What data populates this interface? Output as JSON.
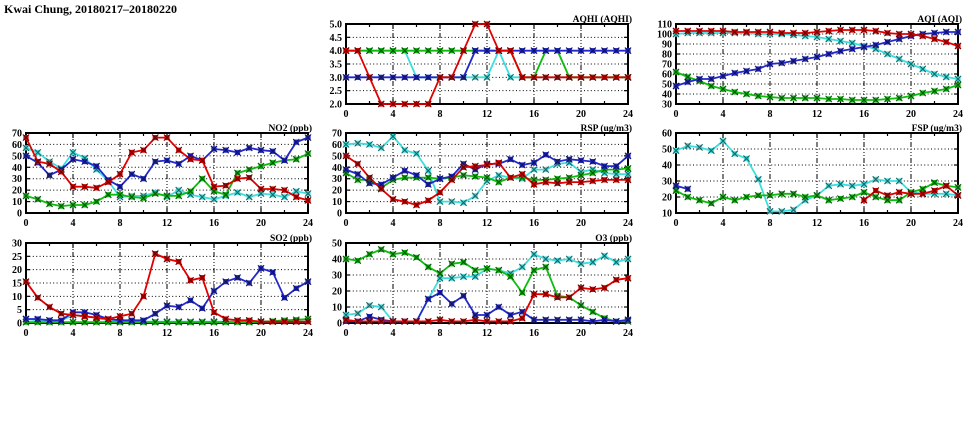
{
  "page_title": "Kwai Chung, 20180217–20180220",
  "colors": {
    "red": "#e00000",
    "blue": "#2228cc",
    "green": "#0fbb0f",
    "cyan": "#3fdede"
  },
  "series_draw_order": [
    "cyan",
    "green",
    "blue",
    "red"
  ],
  "chart_data": [
    {
      "id": "aqhi",
      "type": "line",
      "title": "AQHI (AQHI)",
      "panel": {
        "row": 1,
        "col": 2
      },
      "xlabel": "",
      "ylabel": "",
      "xlim": [
        0,
        24
      ],
      "xtick_step": 4,
      "x_step_hours": 1,
      "ylim": [
        2.0,
        5.0
      ],
      "ytick_step": 0.5,
      "ytick_decimals": 1,
      "series": {
        "red": [
          4,
          4,
          3,
          2,
          2,
          2,
          2,
          2,
          3,
          3,
          4,
          5,
          5,
          4,
          4,
          3,
          3,
          3,
          3,
          3,
          3,
          3,
          3,
          3,
          3
        ],
        "blue": [
          3,
          3,
          3,
          3,
          3,
          3,
          3,
          3,
          3,
          3,
          3,
          4,
          4,
          4,
          4,
          4,
          4,
          4,
          4,
          4,
          4,
          4,
          4,
          4,
          4
        ],
        "green": [
          4,
          4,
          4,
          4,
          4,
          4,
          4,
          4,
          4,
          4,
          4,
          4,
          4,
          4,
          4,
          3,
          3,
          4,
          4,
          3,
          3,
          3,
          3,
          3,
          3
        ],
        "cyan": [
          4,
          4,
          4,
          4,
          4,
          4,
          3,
          3,
          3,
          3,
          3,
          3,
          3,
          4,
          3,
          3,
          3,
          3,
          3,
          3,
          3,
          3,
          3,
          3,
          3
        ]
      }
    },
    {
      "id": "aqi",
      "type": "line",
      "title": "AQI (AQI)",
      "panel": {
        "row": 1,
        "col": 3
      },
      "xlabel": "",
      "ylabel": "",
      "xlim": [
        0,
        24
      ],
      "xtick_step": 4,
      "x_step_hours": 1,
      "ylim": [
        30,
        110
      ],
      "ytick_step": 10,
      "ytick_decimals": 0,
      "series": {
        "red": [
          103,
          103,
          103,
          103,
          103,
          102,
          102,
          102,
          102,
          101,
          101,
          101,
          102,
          103,
          104,
          104,
          104,
          103,
          101,
          100,
          100,
          98,
          95,
          92,
          88
        ],
        "blue": [
          48,
          52,
          55,
          55,
          58,
          61,
          63,
          65,
          70,
          71,
          73,
          75,
          77,
          80,
          83,
          85,
          87,
          89,
          92,
          95,
          98,
          100,
          101,
          102,
          102
        ],
        "green": [
          62,
          57,
          53,
          48,
          45,
          42,
          40,
          38,
          37,
          36,
          36,
          36,
          36,
          35,
          35,
          34,
          34,
          34,
          35,
          36,
          38,
          41,
          43,
          45,
          49
        ],
        "cyan": [
          100,
          101,
          101,
          101,
          101,
          101,
          101,
          100,
          100,
          100,
          99,
          98,
          97,
          95,
          93,
          91,
          88,
          85,
          80,
          75,
          70,
          65,
          60,
          57,
          55
        ]
      }
    },
    {
      "id": "no2",
      "type": "line",
      "title": "NO2 (ppb)",
      "panel": {
        "row": 2,
        "col": 1
      },
      "xlabel": "",
      "ylabel": "",
      "xlim": [
        0,
        24
      ],
      "xtick_step": 4,
      "x_step_hours": 1,
      "ylim": [
        0,
        70
      ],
      "ytick_step": 10,
      "ytick_decimals": 0,
      "series": {
        "red": [
          66,
          45,
          43,
          36,
          23,
          23,
          22,
          27,
          34,
          53,
          55,
          66,
          66,
          55,
          47,
          46,
          23,
          24,
          30,
          31,
          21,
          21,
          20,
          14,
          11
        ],
        "blue": [
          50,
          44,
          33,
          38,
          47,
          45,
          41,
          29,
          23,
          34,
          30,
          45,
          46,
          43,
          50,
          46,
          56,
          55,
          53,
          57,
          55,
          54,
          46,
          62,
          66
        ],
        "green": [
          15,
          12,
          8,
          6,
          7,
          7,
          10,
          16,
          16,
          14,
          13,
          17,
          15,
          15,
          19,
          30,
          19,
          16,
          35,
          38,
          41,
          44,
          46,
          47,
          52
        ],
        "cyan": [
          57,
          53,
          45,
          39,
          53,
          48,
          38,
          28,
          14,
          15,
          15,
          18,
          14,
          20,
          16,
          14,
          12,
          15,
          18,
          14,
          17,
          16,
          14,
          19,
          17
        ]
      }
    },
    {
      "id": "rsp",
      "type": "line",
      "title": "RSP (ug/m3)",
      "panel": {
        "row": 2,
        "col": 2
      },
      "xlabel": "",
      "ylabel": "",
      "xlim": [
        0,
        24
      ],
      "xtick_step": 4,
      "x_step_hours": 1,
      "ylim": [
        0,
        70
      ],
      "ytick_step": 10,
      "ytick_decimals": 0,
      "series": {
        "red": [
          50,
          43,
          31,
          21,
          12,
          10,
          7,
          11,
          18,
          29,
          40,
          41,
          42,
          44,
          31,
          34,
          25,
          27,
          26,
          27,
          27,
          28,
          29,
          29,
          29
        ],
        "blue": [
          38,
          34,
          26,
          25,
          31,
          37,
          33,
          25,
          30,
          32,
          43,
          38,
          43,
          43,
          47,
          42,
          44,
          51,
          45,
          47,
          46,
          45,
          41,
          41,
          50
        ],
        "green": [
          35,
          29,
          29,
          22,
          29,
          31,
          31,
          31,
          30,
          31,
          33,
          32,
          31,
          27,
          31,
          31,
          29,
          29,
          30,
          31,
          33,
          35,
          38,
          38,
          39
        ],
        "cyan": [
          60,
          61,
          60,
          57,
          67,
          55,
          52,
          37,
          10,
          10,
          9,
          15,
          28,
          33,
          31,
          30,
          38,
          38,
          43,
          44,
          36,
          38,
          35,
          34,
          34
        ]
      }
    },
    {
      "id": "fsp",
      "type": "line",
      "title": "FSP (ug/m3)",
      "panel": {
        "row": 2,
        "col": 3
      },
      "xlabel": "",
      "ylabel": "",
      "xlim": [
        0,
        24
      ],
      "xtick_step": 4,
      "x_step_hours": 1,
      "ylim": [
        10,
        60
      ],
      "ytick_step": 10,
      "ytick_decimals": 0,
      "series": {
        "red": [
          null,
          null,
          null,
          null,
          null,
          null,
          null,
          null,
          null,
          null,
          null,
          null,
          null,
          null,
          null,
          null,
          18,
          24,
          21,
          23,
          22,
          22,
          24,
          27,
          21
        ],
        "blue": [
          27,
          25,
          null,
          null,
          null,
          null,
          null,
          null,
          null,
          null,
          null,
          null,
          null,
          null,
          null,
          null,
          null,
          null,
          null,
          null,
          null,
          null,
          null,
          null,
          null
        ],
        "green": [
          24,
          20,
          18,
          16,
          20,
          18,
          20,
          21,
          21,
          22,
          22,
          20,
          21,
          18,
          19,
          20,
          23,
          20,
          18,
          18,
          23,
          25,
          29,
          27,
          26
        ],
        "cyan": [
          49,
          52,
          51,
          49,
          55,
          47,
          44,
          31,
          11,
          11,
          12,
          18,
          21,
          27,
          28,
          27,
          28,
          31,
          30,
          30,
          23,
          22,
          22,
          22,
          21
        ]
      }
    },
    {
      "id": "so2",
      "type": "line",
      "title": "SO2 (ppb)",
      "panel": {
        "row": 3,
        "col": 1
      },
      "xlabel": "",
      "ylabel": "",
      "xlim": [
        0,
        24
      ],
      "xtick_step": 4,
      "x_step_hours": 1,
      "ylim": [
        0,
        30
      ],
      "ytick_step": 5,
      "ytick_decimals": 0,
      "series": {
        "red": [
          15.5,
          9.5,
          6,
          3.5,
          3,
          2.5,
          2,
          1.5,
          2.5,
          3.5,
          10,
          26,
          24,
          23,
          16,
          17,
          4,
          1.5,
          1,
          1,
          0.5,
          0.5,
          0.5,
          0.5,
          0.5
        ],
        "blue": [
          1.5,
          1.5,
          1,
          1,
          4,
          4,
          3,
          1.5,
          1,
          1,
          1,
          3.5,
          6.5,
          6,
          8.5,
          5.5,
          12,
          15.5,
          17,
          15,
          20.5,
          19,
          9.5,
          13,
          15.5
        ],
        "green": [
          0.3,
          0.3,
          0.3,
          0.3,
          0.3,
          0.3,
          0.3,
          0.3,
          0.3,
          0.3,
          0.3,
          0.3,
          0.3,
          0.3,
          0.3,
          0.3,
          0.3,
          0.3,
          0.3,
          0.3,
          0.5,
          0.7,
          1,
          1.2,
          1.5
        ],
        "cyan": [
          1.5,
          1,
          1,
          1,
          3,
          2.5,
          2,
          1,
          0.5,
          0.5,
          0.5,
          0.5,
          0.5,
          0.5,
          0.5,
          0.5,
          0.5,
          0.5,
          0.5,
          0.5,
          0.5,
          0.5,
          0.5,
          0.5,
          0.5
        ]
      }
    },
    {
      "id": "o3",
      "type": "line",
      "title": "O3 (ppb)",
      "panel": {
        "row": 3,
        "col": 2
      },
      "xlabel": "",
      "ylabel": "",
      "xlim": [
        0,
        24
      ],
      "xtick_step": 4,
      "x_step_hours": 1,
      "ylim": [
        0,
        50
      ],
      "ytick_step": 10,
      "ytick_decimals": 0,
      "series": {
        "red": [
          2,
          1,
          1,
          1,
          1,
          1,
          1,
          1,
          2,
          1,
          1,
          2,
          1,
          1,
          1,
          3,
          18,
          18,
          16,
          16,
          22,
          21,
          22,
          27,
          28
        ],
        "blue": [
          1,
          1,
          4,
          2,
          1,
          1,
          1,
          15,
          19,
          12,
          17,
          5,
          5,
          10,
          5,
          7,
          2,
          2,
          2,
          2,
          2,
          1,
          2,
          1,
          2
        ],
        "green": [
          40,
          39,
          43,
          46,
          43,
          44,
          41,
          35,
          31,
          37,
          38,
          33,
          34,
          33,
          29,
          19,
          33,
          35,
          17,
          16,
          11,
          7,
          3,
          1,
          1
        ],
        "cyan": [
          5,
          6,
          11,
          10,
          1,
          1,
          1,
          15,
          28,
          28,
          29,
          29,
          34,
          33,
          31,
          35,
          43,
          40,
          39,
          40,
          37,
          38,
          42,
          38,
          40
        ]
      }
    }
  ]
}
